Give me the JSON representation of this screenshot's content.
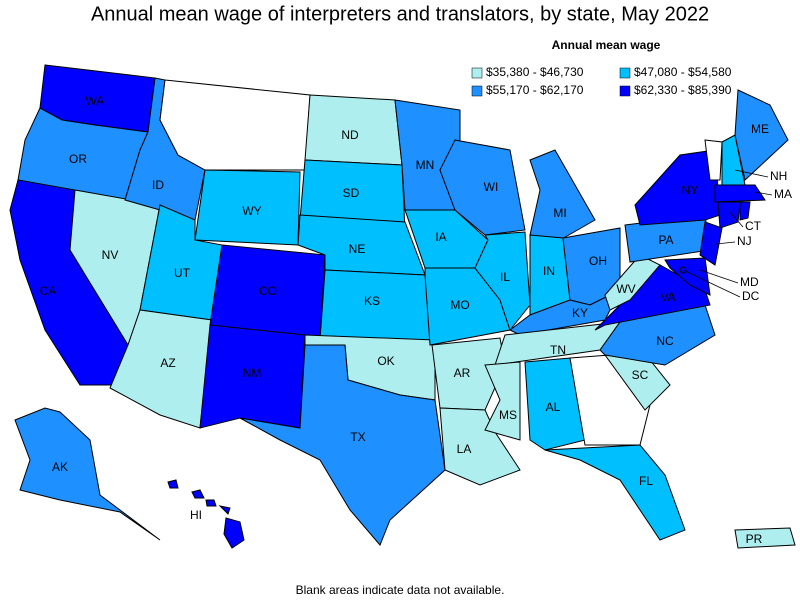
{
  "title": "Annual mean wage of interpreters and translators, by state, May 2022",
  "legend": {
    "title": "Annual mean wage",
    "items": [
      {
        "label": "$35,380 - $46,730",
        "color": "#afeeee"
      },
      {
        "label": "$47,080 - $54,580",
        "color": "#00bfff"
      },
      {
        "label": "$55,170 - $62,170",
        "color": "#1e90ff"
      },
      {
        "label": "$62,330 - $85,390",
        "color": "#0000ff"
      }
    ]
  },
  "states": [
    {
      "abbr": "WA",
      "legend_index": 3
    },
    {
      "abbr": "OR",
      "legend_index": 2
    },
    {
      "abbr": "CA",
      "legend_index": 3
    },
    {
      "abbr": "NV",
      "legend_index": 0
    },
    {
      "abbr": "ID",
      "legend_index": 2
    },
    {
      "abbr": null,
      "legend_index": null
    },
    {
      "abbr": "WY",
      "legend_index": 1
    },
    {
      "abbr": "UT",
      "legend_index": 1
    },
    {
      "abbr": "AZ",
      "legend_index": 0
    },
    {
      "abbr": "CO",
      "legend_index": 3
    },
    {
      "abbr": "NM",
      "legend_index": 3
    },
    {
      "abbr": "ND",
      "legend_index": 0
    },
    {
      "abbr": "SD",
      "legend_index": 1
    },
    {
      "abbr": "NE",
      "legend_index": 1
    },
    {
      "abbr": "KS",
      "legend_index": 1
    },
    {
      "abbr": "OK",
      "legend_index": 0
    },
    {
      "abbr": "TX",
      "legend_index": 2
    },
    {
      "abbr": "MN",
      "legend_index": 2
    },
    {
      "abbr": "IA",
      "legend_index": 1
    },
    {
      "abbr": "MO",
      "legend_index": 1
    },
    {
      "abbr": "AR",
      "legend_index": 0
    },
    {
      "abbr": "LA",
      "legend_index": 0
    },
    {
      "abbr": "WI",
      "legend_index": 2
    },
    {
      "abbr": "IL",
      "legend_index": 1
    },
    {
      "abbr": "MI",
      "legend_index": 2
    },
    {
      "abbr": "IN",
      "legend_index": 1
    },
    {
      "abbr": "OH",
      "legend_index": 2
    },
    {
      "abbr": "KY",
      "legend_index": 2
    },
    {
      "abbr": "TN",
      "legend_index": 0
    },
    {
      "abbr": "MS",
      "legend_index": 0
    },
    {
      "abbr": "AL",
      "legend_index": 1
    },
    {
      "abbr": null,
      "legend_index": null
    },
    {
      "abbr": "FL",
      "legend_index": 1
    },
    {
      "abbr": "SC",
      "legend_index": 0
    },
    {
      "abbr": "NC",
      "legend_index": 2
    },
    {
      "abbr": "VA",
      "legend_index": 3
    },
    {
      "abbr": "WV",
      "legend_index": 0
    },
    {
      "abbr": "PA",
      "legend_index": 2
    },
    {
      "abbr": "NY",
      "legend_index": 3
    },
    {
      "abbr": "NJ",
      "legend_index": 3
    },
    {
      "abbr": "MD",
      "legend_index": 3
    },
    {
      "abbr": null,
      "legend_index": null
    },
    {
      "abbr": "NH",
      "legend_index": 1
    },
    {
      "abbr": "ME",
      "legend_index": 2
    },
    {
      "abbr": "MA",
      "legend_index": 3
    },
    {
      "abbr": "CT",
      "legend_index": 3
    },
    {
      "abbr": null,
      "legend_index": 3
    },
    {
      "abbr": "AK",
      "legend_index": 2
    },
    {
      "abbr": "HI",
      "legend_index": 3
    },
    {
      "abbr": "PR",
      "legend_index": 0
    },
    {
      "abbr": "DC",
      "legend_index": 3
    }
  ],
  "footnote": "Blank areas indicate data not available."
}
